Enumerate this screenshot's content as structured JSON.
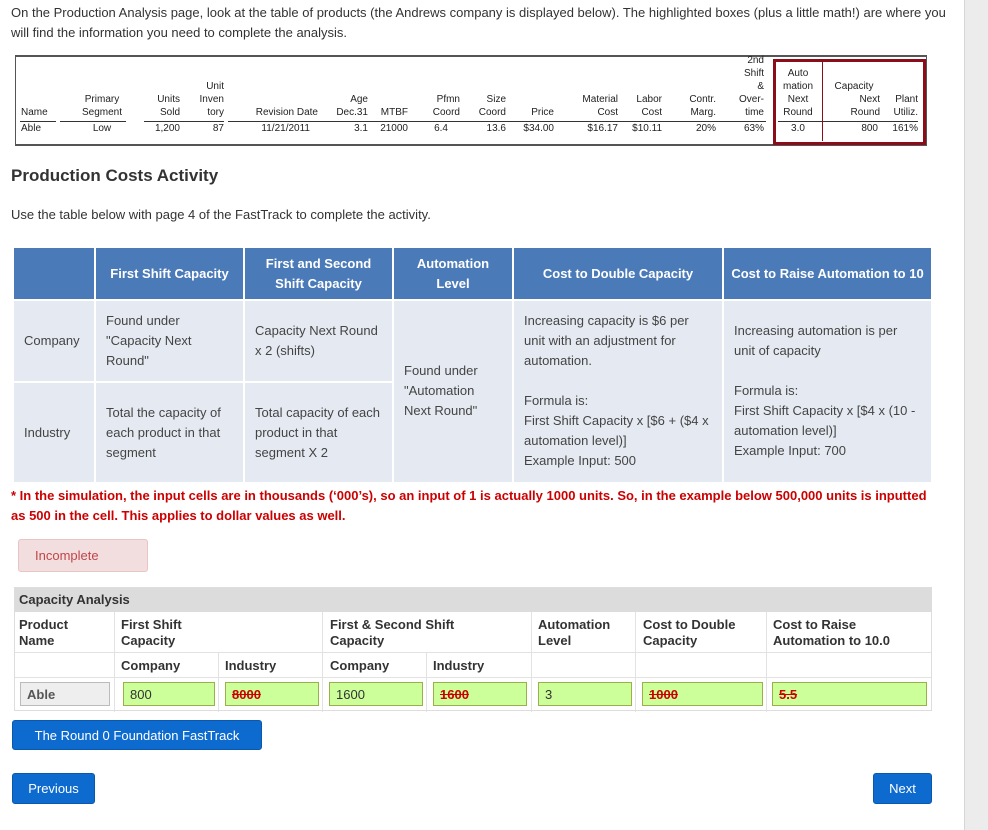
{
  "intro": "On the Production Analysis page, look at the table of products (the Andrews company is displayed below). The highlighted boxes (plus a little math!) are where you will find the information you need to complete the analysis.",
  "report": {
    "headers": {
      "name": "Name",
      "primary": "Primary",
      "segment": "Segment",
      "units": "Units",
      "sold": "Sold",
      "unit": "Unit",
      "inven": "Inven",
      "tory": "tory",
      "revision_date": "Revision Date",
      "age": "Age",
      "dec31": "Dec.31",
      "mtbf": "MTBF",
      "pfmn": "Pfmn",
      "pfmn_coord": "Coord",
      "size": "Size",
      "size_coord": "Coord",
      "price": "Price",
      "material": "Material",
      "material_cost": "Cost",
      "labor": "Labor",
      "labor_cost": "Cost",
      "contr": "Contr.",
      "marg": "Marg.",
      "second_shift_1": "2nd",
      "second_shift_2": "Shift",
      "second_shift_3": "&",
      "second_shift_4": "Over-",
      "second_shift_5": "time",
      "auto_1": "Auto",
      "auto_2": "mation",
      "auto_3": "Next",
      "auto_4": "Round",
      "cap_1": "Capacity",
      "cap_2": "Next",
      "cap_3": "Round",
      "plant_1": "Plant",
      "plant_2": "Utiliz."
    },
    "row": {
      "name": "Able",
      "segment": "Low",
      "units_sold": "1,200",
      "inventory": "87",
      "revision_date": "11/21/2011",
      "age": "3.1",
      "mtbf": "21000",
      "pfmn": "6.4",
      "size": "13.6",
      "price": "$34.00",
      "material_cost": "$16.17",
      "labor_cost": "$10.11",
      "contr_marg": "20%",
      "second_shift": "63%",
      "automation": "3.0",
      "capacity": "800",
      "plant_util": "161%"
    }
  },
  "section_title": "Production Costs Activity",
  "section_subtext": "Use the table below with page 4 of the FastTrack to complete the activity.",
  "info_table": {
    "headers": [
      "First Shift Capacity",
      "First and Second Shift Capacity",
      "Automation Level",
      "Cost to Double Capacity",
      "Cost to Raise Automation to 10"
    ],
    "company_label": "Company",
    "industry_label": "Industry",
    "company_first_shift": "Found under \"Capacity Next Round\"",
    "company_second_shift": "Capacity Next Round x 2 (shifts)",
    "industry_first_shift": "Total the capacity of each product in that segment",
    "industry_second_shift": "Total capacity of each product in that segment X 2",
    "automation": "Found under \"Automation Next Round\"",
    "double_capacity_1": "Increasing capacity is $6 per unit with an adjustment for automation.",
    "double_capacity_2": "Formula is:",
    "double_capacity_3": "First Shift Capacity x [$6 + ($4 x automation level)]",
    "double_capacity_4": "Example Input: 500",
    "raise_auto_1": "Increasing automation is per unit of capacity",
    "raise_auto_2": "Formula is:",
    "raise_auto_3": "First Shift Capacity x [$4 x (10 - automation level)]",
    "raise_auto_4": "Example Input: 700"
  },
  "note": "* In the simulation, the input cells are in thousands (‘000’s), so an input of 1 is actually 1000 units. So, in the example below 500,000 units is inputted as 500 in the cell. This applies to dollar values as well.",
  "status_badge": "Incomplete",
  "form": {
    "title": "Capacity Analysis",
    "col_product": "Product Name",
    "col_first_shift": "First Shift Capacity",
    "col_second_shift": "First & Second Shift Capacity",
    "col_automation": "Automation Level",
    "col_double": "Cost to Double Capacity",
    "col_raise": "Cost to Raise Automation to 10.0",
    "sub_company_1": "Company",
    "sub_industry_1": "Industry",
    "sub_company_2": "Company",
    "sub_industry_2": "Industry",
    "values": {
      "product": "Able",
      "first_company": "800",
      "first_industry": "8000",
      "second_company": "1600",
      "second_industry": "1600",
      "automation": "3",
      "double": "1000",
      "raise": "5.5"
    }
  },
  "buttons": {
    "fasttrack": "The Round 0 Foundation FastTrack",
    "previous": "Previous",
    "next": "Next"
  },
  "colors": {
    "header_blue": "#4a7ab8",
    "cell_bg": "#e5eaf2",
    "input_green": "#ccff99",
    "error_red": "#cc0000",
    "highlight_border": "#8b0d1a",
    "button_blue": "#0d6bd0"
  }
}
